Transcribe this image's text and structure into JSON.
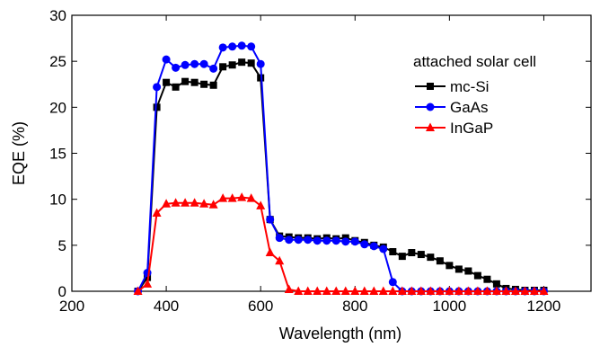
{
  "chart_data": {
    "type": "line",
    "xlabel": "Wavelength (nm)",
    "ylabel": "EQE (%)",
    "xlim": [
      200,
      1300
    ],
    "ylim": [
      0,
      30
    ],
    "xticks": [
      200,
      400,
      600,
      800,
      1000,
      1200
    ],
    "yticks": [
      0,
      5,
      10,
      15,
      20,
      25,
      30
    ],
    "grid": false,
    "legend": {
      "title": "attached solar cell",
      "placement": "top-right"
    },
    "series": [
      {
        "name": "mc-Si",
        "color": "#000000",
        "marker": "square",
        "x": [
          340,
          360,
          380,
          400,
          420,
          440,
          460,
          480,
          500,
          520,
          540,
          560,
          580,
          600,
          620,
          640,
          660,
          680,
          700,
          720,
          740,
          760,
          780,
          800,
          820,
          840,
          860,
          880,
          900,
          920,
          940,
          960,
          980,
          1000,
          1020,
          1040,
          1060,
          1080,
          1100,
          1120,
          1140,
          1160,
          1180,
          1200
        ],
        "y": [
          0,
          1.5,
          20,
          22.7,
          22.2,
          22.8,
          22.7,
          22.5,
          22.4,
          24.4,
          24.6,
          24.9,
          24.8,
          23.2,
          7.8,
          6,
          5.9,
          5.8,
          5.8,
          5.7,
          5.8,
          5.7,
          5.8,
          5.5,
          5.3,
          5.0,
          4.8,
          4.3,
          3.8,
          4.2,
          4.0,
          3.7,
          3.3,
          2.8,
          2.4,
          2.2,
          1.7,
          1.3,
          0.8,
          0.3,
          0.2,
          0.1,
          0.1,
          0.1
        ]
      },
      {
        "name": "GaAs",
        "color": "#0000ff",
        "marker": "circle",
        "x": [
          340,
          360,
          380,
          400,
          420,
          440,
          460,
          480,
          500,
          520,
          540,
          560,
          580,
          600,
          620,
          640,
          660,
          680,
          700,
          720,
          740,
          760,
          780,
          800,
          820,
          840,
          860,
          880,
          900,
          920,
          940,
          960,
          980,
          1000,
          1020,
          1040,
          1060,
          1080,
          1100,
          1120,
          1140,
          1160,
          1180,
          1200
        ],
        "y": [
          0,
          2,
          22.2,
          25.2,
          24.3,
          24.6,
          24.7,
          24.7,
          24.2,
          26.5,
          26.6,
          26.7,
          26.6,
          24.7,
          7.8,
          5.8,
          5.6,
          5.6,
          5.6,
          5.5,
          5.5,
          5.5,
          5.4,
          5.4,
          5.1,
          4.9,
          4.6,
          1.0,
          0,
          0,
          0,
          0,
          0,
          0,
          0,
          0,
          0,
          0,
          0,
          0,
          0,
          0,
          0,
          0
        ]
      },
      {
        "name": "InGaP",
        "color": "#ff0000",
        "marker": "triangle",
        "x": [
          340,
          360,
          380,
          400,
          420,
          440,
          460,
          480,
          500,
          520,
          540,
          560,
          580,
          600,
          620,
          640,
          660,
          680,
          700,
          720,
          740,
          760,
          780,
          800,
          820,
          840,
          860,
          880,
          900,
          920,
          940,
          960,
          980,
          1000,
          1020,
          1040,
          1060,
          1080,
          1100,
          1120,
          1140,
          1160,
          1180,
          1200
        ],
        "y": [
          0,
          0.8,
          8.5,
          9.5,
          9.6,
          9.6,
          9.6,
          9.5,
          9.4,
          10.1,
          10.1,
          10.2,
          10.1,
          9.3,
          4.2,
          3.3,
          0.2,
          0,
          0,
          0,
          0,
          0,
          0,
          0,
          0,
          0,
          0,
          0,
          0,
          0,
          0,
          0,
          0,
          0,
          0,
          0,
          0,
          0,
          0,
          0,
          0,
          0,
          0,
          0
        ]
      }
    ]
  }
}
